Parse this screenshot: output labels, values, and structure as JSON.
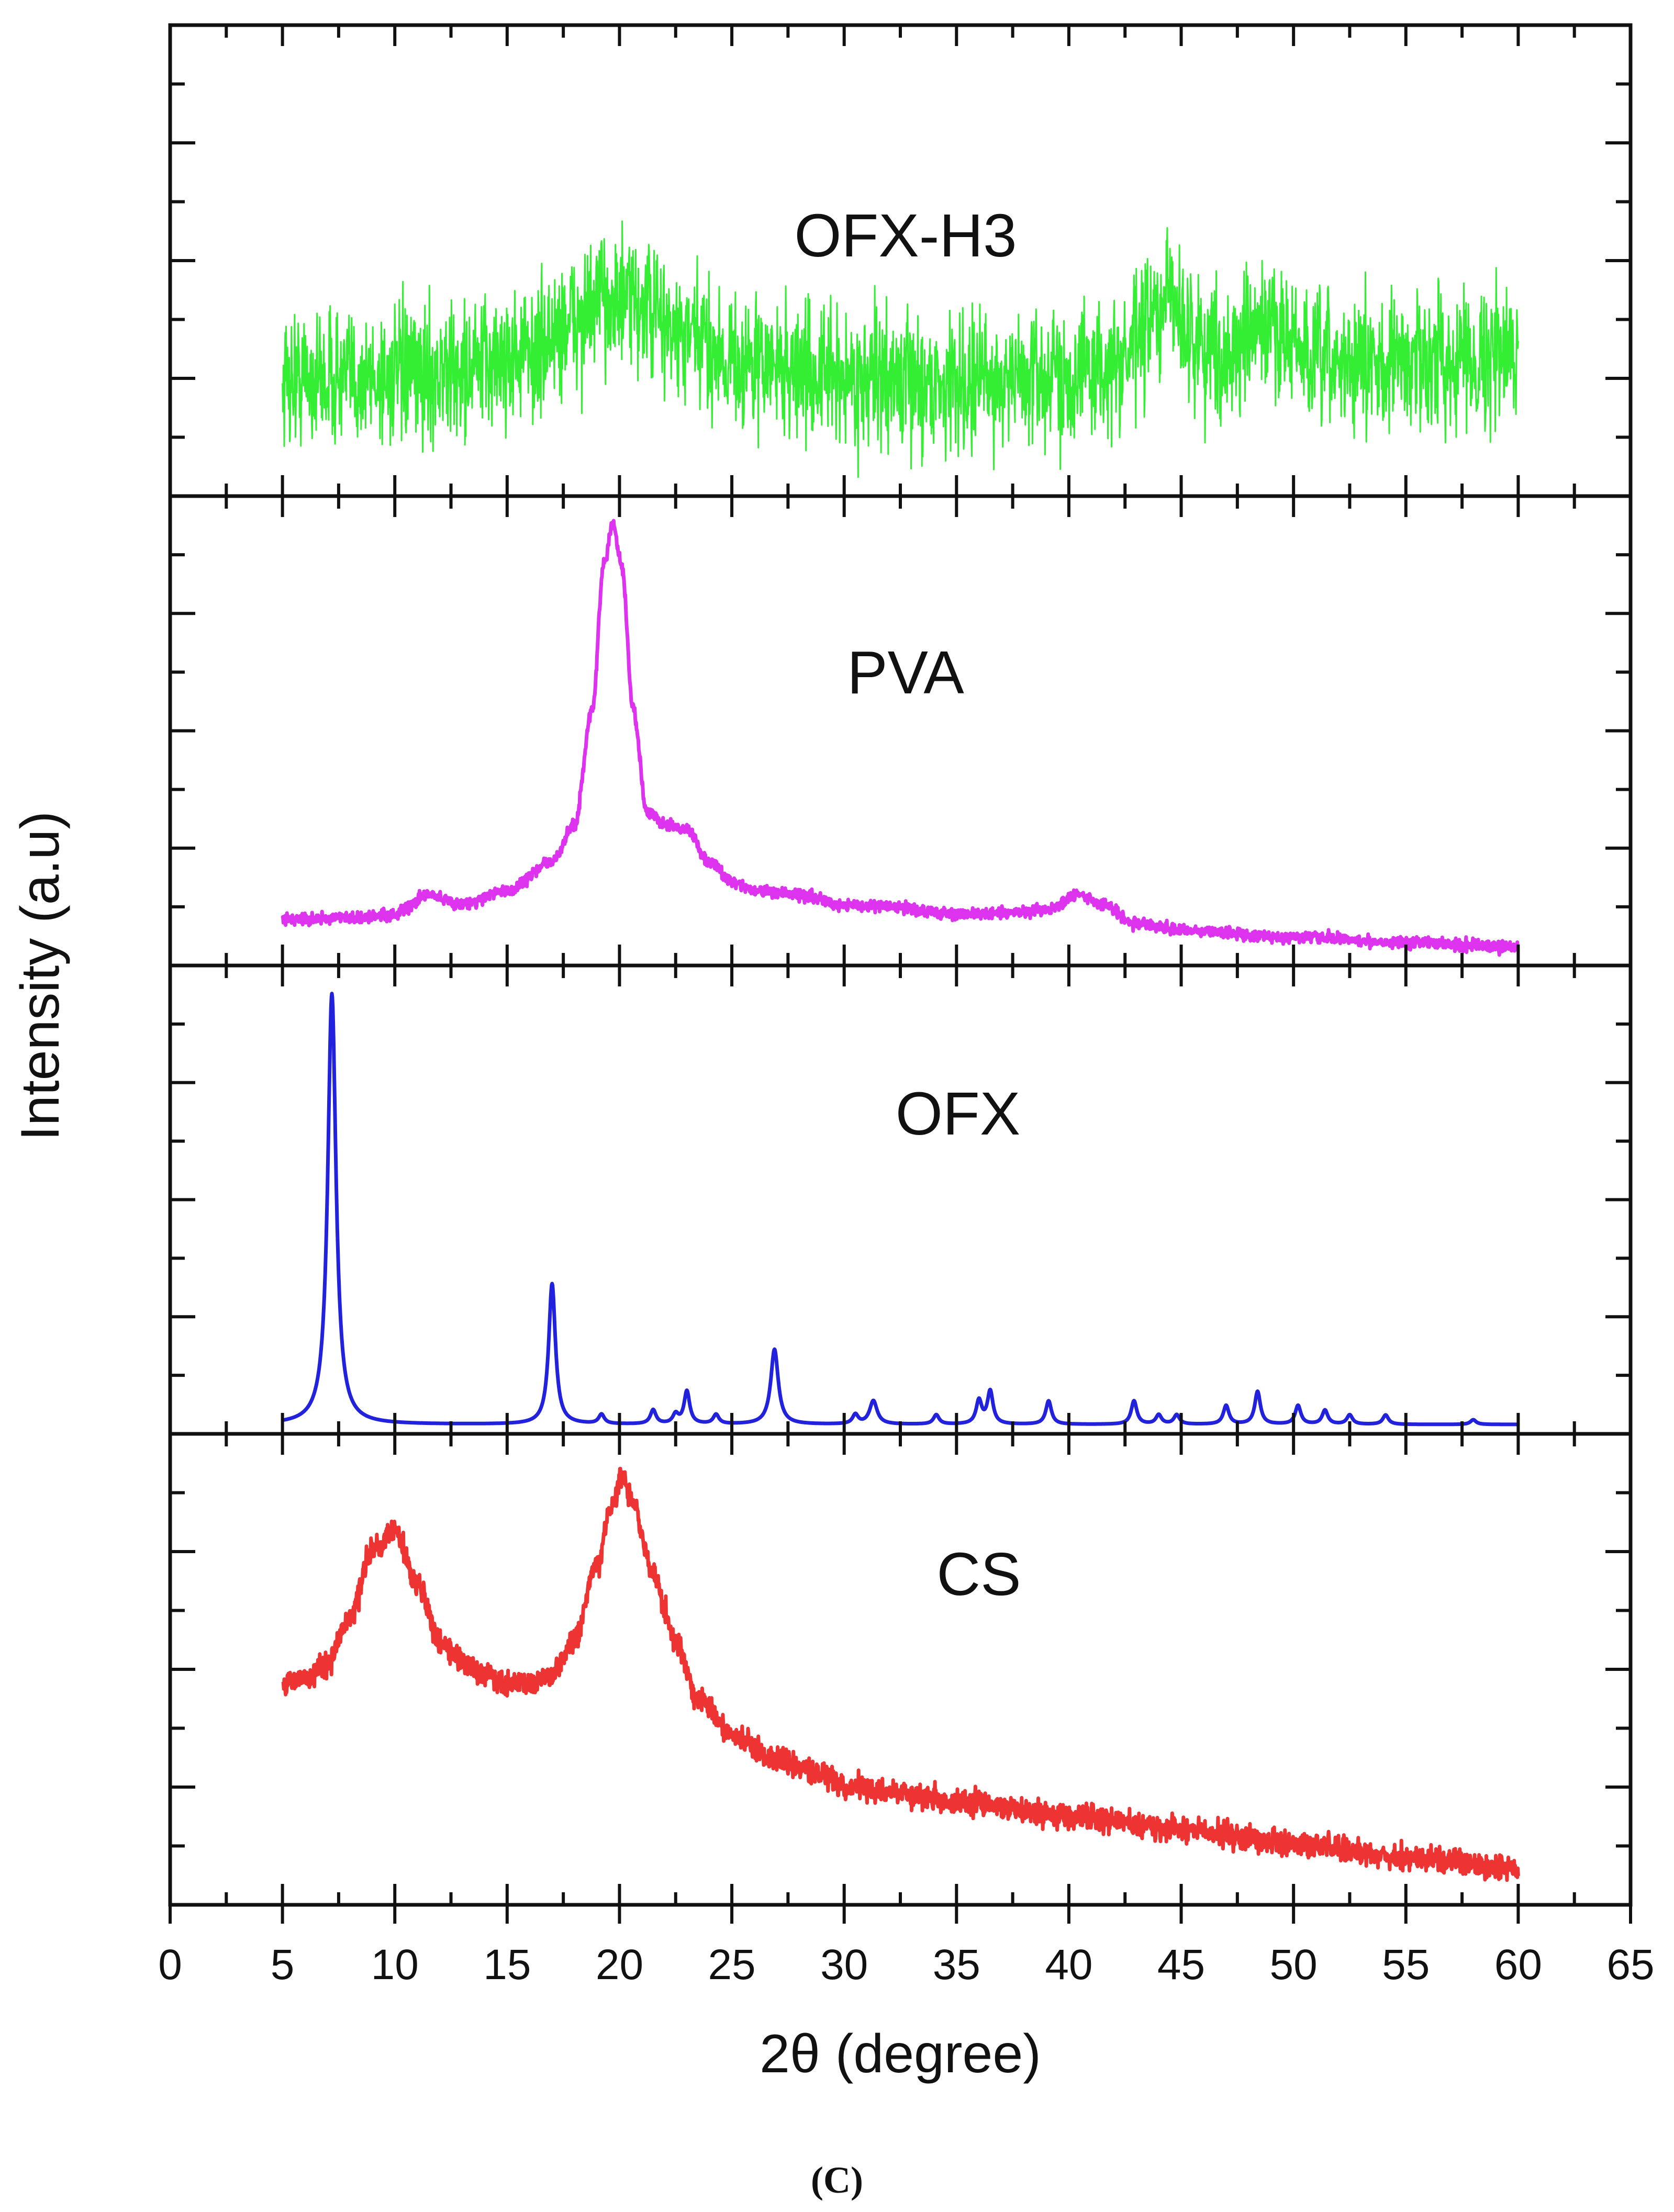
{
  "chart_data": {
    "type": "line",
    "layout": "stacked-panels",
    "xlabel": "2θ (degree)",
    "ylabel": "Intensity (a.u)",
    "xlim": [
      0,
      65
    ],
    "xticks": [
      "0",
      "5",
      "10",
      "15",
      "20",
      "25",
      "30",
      "35",
      "40",
      "45",
      "50",
      "55",
      "60",
      "65"
    ],
    "ylim_per_panel": [
      0,
      100
    ],
    "caption": "(C)",
    "series": [
      {
        "name": "OFX-H3",
        "color": "#33ee33",
        "noise": 7,
        "x": [
          5,
          8,
          12,
          16,
          18,
          19.5,
          21,
          23,
          26,
          30,
          34,
          38,
          42,
          44,
          44.5,
          45.5,
          47,
          49,
          51,
          53,
          56,
          60
        ],
        "y": [
          25,
          25,
          26,
          30,
          37,
          42,
          40,
          33,
          28,
          25,
          24,
          25,
          27,
          38,
          43,
          33,
          30,
          36,
          28,
          28,
          29,
          30
        ]
      },
      {
        "name": "PVA",
        "color": "#dd33ee",
        "noise": 0.6,
        "x": [
          5,
          8,
          10,
          11.5,
          13,
          15,
          17,
          18,
          18.8,
          19.3,
          19.7,
          20.1,
          20.6,
          21.2,
          22,
          23,
          24,
          25,
          26,
          28,
          30,
          32,
          35,
          37,
          39,
          40.5,
          41.5,
          43,
          45,
          50,
          55,
          60
        ],
        "y": [
          10,
          10,
          11,
          15,
          13,
          16,
          22,
          30,
          55,
          85,
          94,
          85,
          55,
          33,
          30,
          29,
          22,
          18,
          16,
          15,
          13,
          12.5,
          11,
          11,
          12,
          15,
          13,
          9,
          7.5,
          6,
          5,
          4
        ]
      },
      {
        "name": "OFX",
        "color": "#2222dd",
        "noise": 0,
        "baseline": 2,
        "peaks": [
          {
            "x": 7.2,
            "h": 92,
            "w": 0.22
          },
          {
            "x": 17.0,
            "h": 30,
            "w": 0.18
          },
          {
            "x": 19.2,
            "h": 2,
            "w": 0.15
          },
          {
            "x": 21.5,
            "h": 3,
            "w": 0.15
          },
          {
            "x": 22.5,
            "h": 2,
            "w": 0.15
          },
          {
            "x": 23.0,
            "h": 7,
            "w": 0.15
          },
          {
            "x": 24.3,
            "h": 2,
            "w": 0.15
          },
          {
            "x": 26.9,
            "h": 16,
            "w": 0.2
          },
          {
            "x": 30.5,
            "h": 2,
            "w": 0.15
          },
          {
            "x": 31.3,
            "h": 5,
            "w": 0.2
          },
          {
            "x": 34.1,
            "h": 2,
            "w": 0.15
          },
          {
            "x": 36.0,
            "h": 5,
            "w": 0.15
          },
          {
            "x": 36.5,
            "h": 7,
            "w": 0.15
          },
          {
            "x": 39.1,
            "h": 5,
            "w": 0.15
          },
          {
            "x": 42.9,
            "h": 5,
            "w": 0.15
          },
          {
            "x": 44.0,
            "h": 2,
            "w": 0.15
          },
          {
            "x": 44.8,
            "h": 2,
            "w": 0.15
          },
          {
            "x": 47.0,
            "h": 4,
            "w": 0.15
          },
          {
            "x": 48.4,
            "h": 7,
            "w": 0.15
          },
          {
            "x": 50.2,
            "h": 4,
            "w": 0.15
          },
          {
            "x": 51.4,
            "h": 3,
            "w": 0.15
          },
          {
            "x": 52.5,
            "h": 2,
            "w": 0.15
          },
          {
            "x": 54.1,
            "h": 2,
            "w": 0.15
          },
          {
            "x": 58.0,
            "h": 1,
            "w": 0.15
          }
        ]
      },
      {
        "name": "CS",
        "color": "#ee3333",
        "noise": 1.3,
        "x": [
          5,
          6,
          7,
          8,
          9,
          10,
          11,
          12,
          13,
          14,
          15,
          16,
          17,
          18,
          19,
          19.6,
          20.1,
          20.6,
          21.5,
          22.5,
          23.5,
          25,
          27,
          29,
          30,
          32,
          35,
          40,
          45,
          50,
          55,
          60
        ],
        "y": [
          47,
          48,
          51,
          61,
          75,
          80,
          68,
          56,
          52,
          49,
          47,
          47,
          49,
          56,
          72,
          84,
          91,
          85,
          70,
          56,
          44,
          36,
          31,
          28,
          25,
          24,
          22,
          19,
          16,
          13,
          10,
          8
        ]
      }
    ]
  }
}
